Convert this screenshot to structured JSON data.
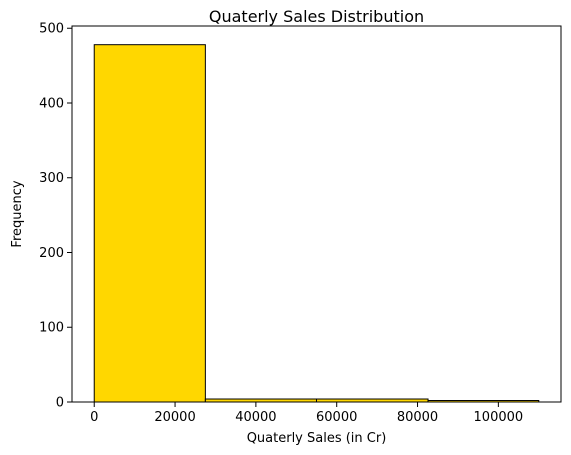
{
  "chart_data": {
    "type": "bar",
    "title": "Quaterly Sales Distribution",
    "xlabel": "Quaterly Sales (in Cr)",
    "ylabel": "Frequency",
    "bins": [
      {
        "start": 0,
        "end": 27500,
        "value": 478
      },
      {
        "start": 27500,
        "end": 55000,
        "value": 4
      },
      {
        "start": 55000,
        "end": 82600,
        "value": 4
      },
      {
        "start": 82600,
        "end": 110000,
        "value": 2
      }
    ],
    "xlim": [
      -5500,
      115500
    ],
    "ylim": [
      0,
      503
    ],
    "xticks": [
      0,
      20000,
      40000,
      60000,
      80000,
      100000
    ],
    "xtick_labels": [
      "0",
      "20000",
      "40000",
      "60000",
      "80000",
      "100000"
    ],
    "yticks": [
      0,
      100,
      200,
      300,
      400,
      500
    ],
    "ytick_labels": [
      "0",
      "100",
      "200",
      "300",
      "400",
      "500"
    ],
    "bar_color": "#FFD700",
    "edge_color": "#000000",
    "grid": false,
    "legend": false
  }
}
